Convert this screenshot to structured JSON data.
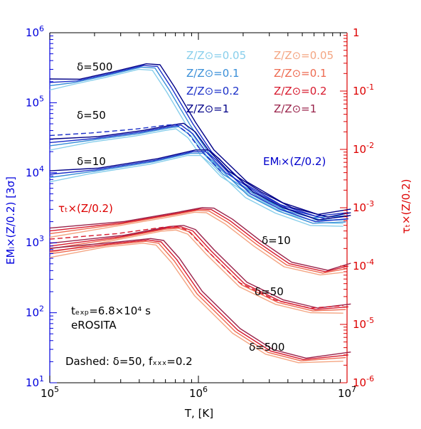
{
  "chart_data": {
    "type": "line",
    "title": "",
    "xlabel": "T, [K]",
    "ylabel_left": "EMₗ×(Z/0.2)   [3σ]",
    "ylabel_right": "τₜ×(Z/0.2)",
    "x_scale": "log",
    "y_scale": "log",
    "xlim": [
      100000,
      10000000
    ],
    "ylim_left": [
      10,
      1000000
    ],
    "ylim_right": [
      1e-06,
      1
    ],
    "x_ticks": [
      {
        "value": 100000,
        "base": "10",
        "exp": "5"
      },
      {
        "value": 1000000,
        "base": "10",
        "exp": "6"
      },
      {
        "value": 10000000,
        "base": "10",
        "exp": "7"
      }
    ],
    "y_ticks_left": [
      {
        "value": 10,
        "base": "10",
        "exp": "1"
      },
      {
        "value": 100,
        "base": "10",
        "exp": "2"
      },
      {
        "value": 1000,
        "base": "10",
        "exp": "3"
      },
      {
        "value": 10000,
        "base": "10",
        "exp": "4"
      },
      {
        "value": 100000,
        "base": "10",
        "exp": "5"
      },
      {
        "value": 1000000,
        "base": "10",
        "exp": "6"
      }
    ],
    "y_ticks_right": [
      {
        "value": 1e-06,
        "base": "10",
        "exp": "-6"
      },
      {
        "value": 1e-05,
        "base": "10",
        "exp": "-5"
      },
      {
        "value": 0.0001,
        "base": "10",
        "exp": "-4"
      },
      {
        "value": 0.001,
        "base": "10",
        "exp": "-3"
      },
      {
        "value": 0.01,
        "base": "10",
        "exp": "-2"
      },
      {
        "value": 0.1,
        "base": "10",
        "exp": "-1"
      },
      {
        "value": 1,
        "base": "1",
        "exp": ""
      }
    ],
    "legend_em": [
      "Z/Z⊙=0.05",
      "Z/Z⊙=0.1",
      "Z/Z⊙=0.2",
      "Z/Z⊙=1"
    ],
    "legend_tau": [
      "Z/Z⊙=0.05",
      "Z/Z⊙=0.1",
      "Z/Z⊙=0.2",
      "Z/Z⊙=1"
    ],
    "legend_placement": "top-right",
    "colors": {
      "axis_left": "#0000dd",
      "axis_right": "#dd0000",
      "em": [
        "#87ceeb",
        "#3a8fd8",
        "#1a2fc8",
        "#000088"
      ],
      "tau": [
        "#f4a582",
        "#ee6a50",
        "#d7192d",
        "#99224a"
      ]
    },
    "annotations": {
      "em_label": "EMₗ×(Z/0.2)",
      "tau_label": "τₜ×(Z/0.2)",
      "delta_500": "δ=500",
      "delta_50": "δ=50",
      "delta_10": "δ=10",
      "t_exp": "tₑₓₚ=6.8×10⁴ s",
      "instrument": "eROSITA",
      "dashed_note": "Dashed: δ=50, fₓₓₓ=0.2"
    },
    "em_series": [
      {
        "delta": 500,
        "x": [
          100000,
          150000,
          250000,
          420000,
          520000,
          650000,
          900000,
          1200000,
          2000000,
          3500000,
          6000000,
          10000000
        ],
        "y": [
          195000,
          205000,
          260000,
          340000,
          330000,
          160000,
          50000,
          20000,
          7000,
          3500,
          2400,
          2700
        ]
      },
      {
        "delta": 50,
        "x": [
          100000,
          200000,
          400000,
          650000,
          750000,
          900000,
          1100000,
          1500000,
          2500000,
          4000000,
          7000000,
          10000000
        ],
        "y": [
          27000,
          31000,
          38000,
          46000,
          48000,
          36000,
          20000,
          10000,
          5000,
          3000,
          2200,
          2400
        ]
      },
      {
        "delta": 10,
        "x": [
          100000,
          200000,
          500000,
          900000,
          1100000,
          1300000,
          1600000,
          2200000,
          3500000,
          6000000,
          10000000
        ],
        "y": [
          9500,
          11000,
          15000,
          20000,
          20000,
          15000,
          9500,
          5000,
          3000,
          2000,
          2200
        ]
      },
      {
        "delta": 50,
        "dashed": true,
        "x": [
          100000,
          200000,
          400000,
          650000,
          750000,
          900000,
          1100000,
          1500000
        ],
        "y": [
          34000,
          37000,
          42000,
          48000,
          49000,
          37000,
          21000,
          10500
        ]
      }
    ],
    "tau_series": [
      {
        "delta": 10,
        "x": [
          100000,
          300000,
          700000,
          1000000,
          1200000,
          1600000,
          2500000,
          4000000,
          7000000,
          10000000
        ],
        "y": [
          0.0004,
          0.00055,
          0.0008,
          0.00095,
          0.00093,
          0.0006,
          0.00025,
          0.00011,
          8e-05,
          0.0001
        ]
      },
      {
        "delta": 50,
        "x": [
          100000,
          300000,
          600000,
          750000,
          900000,
          1200000,
          2000000,
          3500000,
          6000000,
          10000000
        ],
        "y": [
          0.00022,
          0.00032,
          0.00045,
          0.00047,
          0.0004,
          0.00018,
          5e-05,
          2.5e-05,
          1.8e-05,
          2e-05
        ]
      },
      {
        "delta": 500,
        "x": [
          100000,
          250000,
          450000,
          550000,
          700000,
          1000000,
          1800000,
          3000000,
          5000000,
          10000000
        ],
        "y": [
          0.00018,
          0.00024,
          0.00028,
          0.00026,
          0.00013,
          3.5e-05,
          8e-06,
          3.5e-06,
          2.5e-06,
          3e-06
        ]
      },
      {
        "delta": 50,
        "dashed": true,
        "x": [
          100000,
          300000,
          600000,
          750000,
          900000,
          1200000,
          2000000,
          3500000,
          6000000,
          10000000
        ],
        "y": [
          0.00029,
          0.00036,
          0.00046,
          0.00048,
          0.00041,
          0.00019,
          5.2e-05,
          2.6e-05,
          1.9e-05,
          2.1e-05
        ]
      }
    ]
  }
}
